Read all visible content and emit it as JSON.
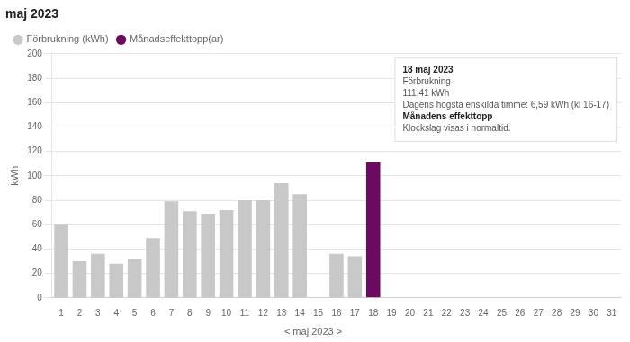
{
  "chart_data": {
    "type": "bar",
    "title": "maj 2023",
    "subtitle": "< maj 2023 >",
    "ylabel": "kWh",
    "categories": [
      1,
      2,
      3,
      4,
      5,
      6,
      7,
      8,
      9,
      10,
      11,
      12,
      13,
      14,
      15,
      16,
      17,
      18,
      19,
      20,
      21,
      22,
      23,
      24,
      25,
      26,
      27,
      28,
      29,
      30,
      31
    ],
    "series": [
      {
        "name": "Förbrukning (kWh)",
        "color": "#c8c8c8",
        "values": [
          60,
          30,
          36,
          28,
          32,
          49,
          79,
          71,
          69,
          72,
          80,
          80,
          94,
          85,
          0,
          36,
          34,
          null,
          0,
          0,
          0,
          0,
          0,
          0,
          0,
          0,
          0,
          0,
          0,
          0,
          0
        ]
      },
      {
        "name": "Månadseffekttopp(ar)",
        "color": "#6b0a5e",
        "values": [
          null,
          null,
          null,
          null,
          null,
          null,
          null,
          null,
          null,
          null,
          null,
          null,
          null,
          null,
          null,
          null,
          null,
          111,
          null,
          null,
          null,
          null,
          null,
          null,
          null,
          null,
          null,
          null,
          null,
          null,
          null
        ]
      }
    ],
    "ylim": [
      0,
      200
    ],
    "yticks": [
      0,
      20,
      40,
      60,
      80,
      100,
      120,
      140,
      160,
      180,
      200
    ],
    "grid": true,
    "legend": "upper left",
    "annotations": [
      "18 maj 2023",
      "Förbrukning",
      "111,41 kWh",
      "Dagens högsta enskilda timme: 6,59 kWh (kl 16-17)",
      "Månadens effekttopp",
      "Klockslag visas i normaltid."
    ]
  }
}
